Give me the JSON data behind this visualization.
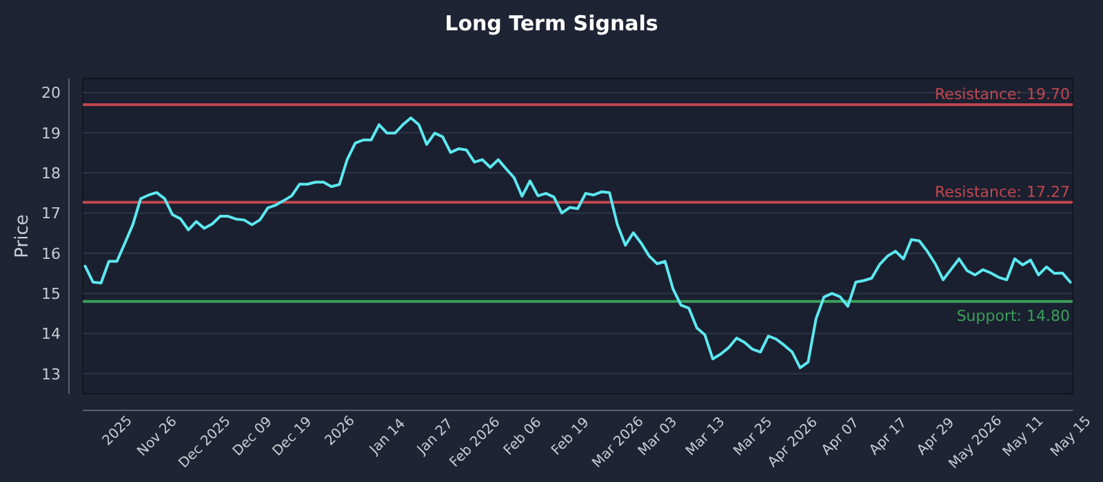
{
  "chart_data": {
    "type": "line",
    "title": "Long Term Signals",
    "ylabel": "Price",
    "categories": [
      null,
      null,
      null,
      null,
      "2025",
      null,
      null,
      null,
      null,
      "Nov 26",
      null,
      null,
      null,
      null,
      null,
      "Dec 2025",
      null,
      null,
      null,
      null,
      null,
      "Dec 09",
      null,
      null,
      null,
      null,
      "Dec 19",
      null,
      null,
      null,
      null,
      null,
      "2026",
      null,
      null,
      null,
      null,
      null,
      "Jan 14",
      null,
      null,
      null,
      null,
      null,
      "Jan 27",
      null,
      null,
      null,
      null,
      "Feb 2026",
      null,
      null,
      null,
      null,
      null,
      "Feb 06",
      null,
      null,
      null,
      null,
      null,
      "Feb 19",
      null,
      null,
      null,
      null,
      null,
      "Mar 2026",
      null,
      null,
      null,
      null,
      "Mar 03",
      null,
      null,
      null,
      null,
      null,
      "Mar 13",
      null,
      null,
      null,
      null,
      null,
      "Mar 25",
      null,
      null,
      null,
      null,
      "Apr 2026",
      null,
      null,
      null,
      null,
      null,
      "Apr 07",
      null,
      null,
      null,
      null,
      null,
      "Apr 17",
      null,
      null,
      null,
      null,
      null,
      "Apr 29",
      null,
      null,
      null,
      null,
      "May 2026",
      null,
      null,
      null,
      null,
      null,
      "May 11",
      null,
      null,
      null,
      null,
      null,
      "May 15"
    ],
    "series": [
      {
        "color": "#5ce8f0",
        "values": [
          15.68,
          15.28,
          15.26,
          15.8,
          15.8,
          16.25,
          16.71,
          17.36,
          17.45,
          17.51,
          17.36,
          16.96,
          16.86,
          16.58,
          16.79,
          16.62,
          16.73,
          16.92,
          16.92,
          16.85,
          16.83,
          16.71,
          16.83,
          17.13,
          17.2,
          17.31,
          17.43,
          17.72,
          17.72,
          17.77,
          17.77,
          17.66,
          17.71,
          18.34,
          18.74,
          18.82,
          18.82,
          19.2,
          18.99,
          18.99,
          19.2,
          19.37,
          19.2,
          18.71,
          18.99,
          18.9,
          18.51,
          18.6,
          18.57,
          18.27,
          18.33,
          18.14,
          18.33,
          18.1,
          17.88,
          17.42,
          17.8,
          17.43,
          17.49,
          17.4,
          17.0,
          17.14,
          17.11,
          17.49,
          17.45,
          17.53,
          17.51,
          16.71,
          16.2,
          16.51,
          16.25,
          15.93,
          15.74,
          15.8,
          15.11,
          14.71,
          14.63,
          14.14,
          13.97,
          13.37,
          13.49,
          13.65,
          13.89,
          13.78,
          13.61,
          13.54,
          13.94,
          13.86,
          13.71,
          13.54,
          13.15,
          13.29,
          14.37,
          14.91,
          15.0,
          14.92,
          14.68,
          15.28,
          15.32,
          15.38,
          15.72,
          15.93,
          16.05,
          15.86,
          16.34,
          16.31,
          16.05,
          15.74,
          15.34,
          15.6,
          15.86,
          15.57,
          15.46,
          15.59,
          15.51,
          15.4,
          15.34,
          15.86,
          15.71,
          15.83,
          15.46,
          15.66,
          15.5,
          15.51,
          15.28
        ]
      }
    ],
    "ylim": [
      12.5,
      20.35
    ],
    "yticks": [
      13,
      14,
      15,
      16,
      17,
      18,
      19,
      20
    ],
    "grid": "y",
    "marker": "none",
    "line_style": "solid",
    "ref_lines": [
      {
        "axis": "y",
        "value": 19.7,
        "label": "Resistance: 19.70",
        "color": "#c0474f"
      },
      {
        "axis": "y",
        "value": 17.27,
        "label": "Resistance: 17.27",
        "color": "#c0474f"
      },
      {
        "axis": "y",
        "value": 14.8,
        "label": "Support: 14.80",
        "color": "#3aa05a"
      }
    ]
  }
}
